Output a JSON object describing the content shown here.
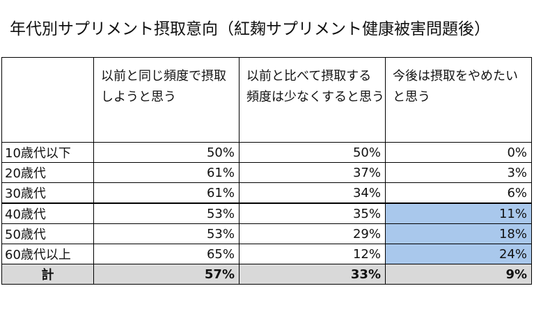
{
  "title": "年代別サプリメント摂取意向（紅麹サプリメント健康被害問題後）",
  "table": {
    "columns": [
      "",
      "以前と同じ頻度で摂取しようと思う",
      "以前と比べて摂取する頻度は少なくすると思う",
      "今後は摂取をやめたいと思う"
    ],
    "header_lines": [
      [
        "以前と同じ頻度で摂取",
        "しようと思う"
      ],
      [
        "以前と比べて摂取する",
        "頻度は少なくすると思う"
      ],
      [
        "今後は摂取をやめたい",
        "と思う"
      ]
    ],
    "rows": [
      {
        "label": "10歳代以下",
        "values": [
          "50%",
          "50%",
          "0%"
        ]
      },
      {
        "label": "20歳代",
        "values": [
          "61%",
          "37%",
          "3%"
        ]
      },
      {
        "label": "30歳代",
        "values": [
          "61%",
          "34%",
          "6%"
        ]
      },
      {
        "label": "40歳代",
        "values": [
          "53%",
          "35%",
          "11%"
        ]
      },
      {
        "label": "50歳代",
        "values": [
          "53%",
          "29%",
          "18%"
        ]
      },
      {
        "label": "60歳代以上",
        "values": [
          "65%",
          "12%",
          "24%"
        ]
      }
    ],
    "total": {
      "label": "計",
      "values": [
        "57%",
        "33%",
        "9%"
      ]
    },
    "highlight_color": "#a9c8ec",
    "total_row_color": "#d9d9d9"
  }
}
